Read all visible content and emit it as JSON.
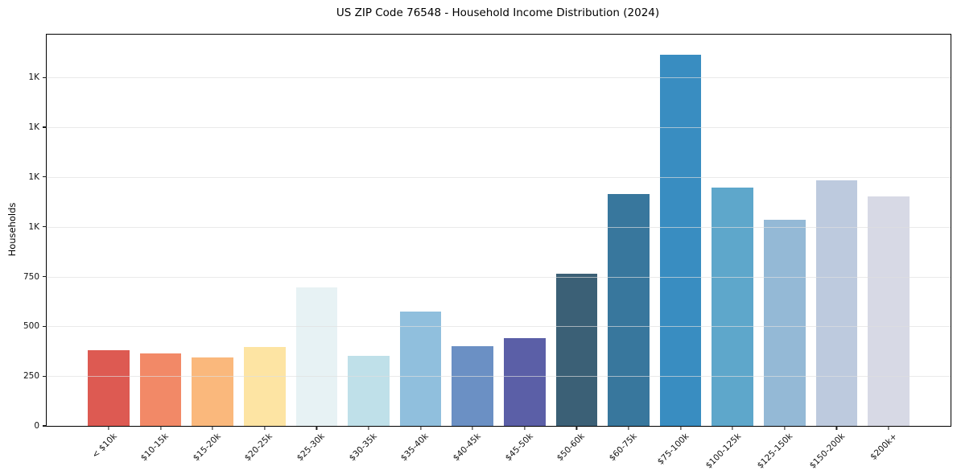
{
  "title": "US ZIP Code 76548 - Household Income Distribution (2024)",
  "chart_data": {
    "type": "bar",
    "title": "US ZIP Code 76548 - Household Income Distribution (2024)",
    "xlabel": "",
    "ylabel": "Households",
    "categories": [
      "< $10k",
      "$10-15k",
      "$15-20k",
      "$20-25k",
      "$25-30k",
      "$30-35k",
      "$35-40k",
      "$40-45k",
      "$45-50k",
      "$50-60k",
      "$60-75k",
      "$75-100k",
      "$100-125k",
      "$125-150k",
      "$150-200k",
      "$200k+"
    ],
    "values": [
      382,
      365,
      342,
      397,
      696,
      351,
      575,
      401,
      441,
      766,
      1165,
      1866,
      1197,
      1037,
      1235,
      1153
    ],
    "bar_colors": [
      "#dd5a52",
      "#f28967",
      "#fab87c",
      "#fde4a3",
      "#e7f2f4",
      "#bfe0e9",
      "#90bfdd",
      "#6b90c4",
      "#5b5fa7",
      "#3b6076",
      "#38779d",
      "#398dc1",
      "#5ea7cb",
      "#94b9d6",
      "#bdcade",
      "#d7d9e5"
    ],
    "ylim": [
      0,
      1965
    ],
    "yticks": [
      {
        "value": 0,
        "label": "0"
      },
      {
        "value": 250,
        "label": "250"
      },
      {
        "value": 500,
        "label": "500"
      },
      {
        "value": 750,
        "label": "750"
      },
      {
        "value": 1000,
        "label": "1K"
      },
      {
        "value": 1250,
        "label": "1K"
      },
      {
        "value": 1500,
        "label": "1K"
      },
      {
        "value": 1750,
        "label": "1K"
      }
    ],
    "grid": "horizontal",
    "legend": "none",
    "bar_relative_width": 0.8,
    "x_margin_fraction": 0.05
  }
}
